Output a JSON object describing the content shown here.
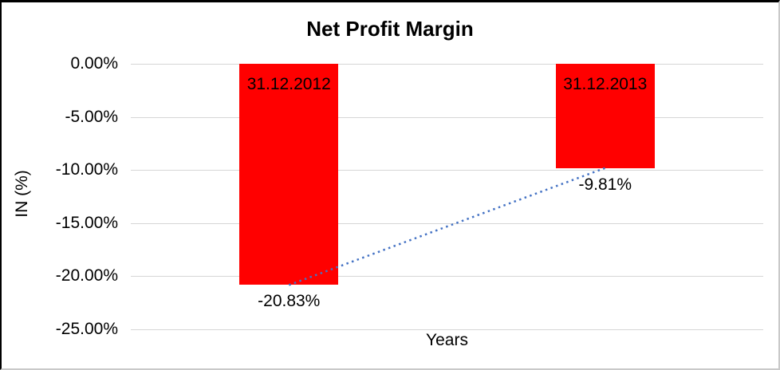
{
  "chart_data": {
    "type": "bar",
    "title": "Net Profit Margin",
    "xlabel": "Years",
    "ylabel": "IN (%)",
    "categories": [
      "31.12.2012",
      "31.12.2013"
    ],
    "values": [
      -20.83,
      -9.81
    ],
    "value_labels": [
      "-20.83%",
      "-9.81%"
    ],
    "ylim": [
      -25,
      0
    ],
    "ytick_values": [
      0,
      -5,
      -10,
      -15,
      -20,
      -25
    ],
    "ytick_labels": [
      "0.00%",
      "-5.00%",
      "-10.00%",
      "-15.00%",
      "-20.00%",
      "-25.00%"
    ],
    "grid": true,
    "legend": "none",
    "bar_color": "#ff0000",
    "bar_label_color": "#000000",
    "gridline_color": "#d6d6d6",
    "trendline": {
      "type": "linear",
      "style": "dotted",
      "color": "#4472c4",
      "from_value": -20.83,
      "to_value": -9.81
    }
  }
}
